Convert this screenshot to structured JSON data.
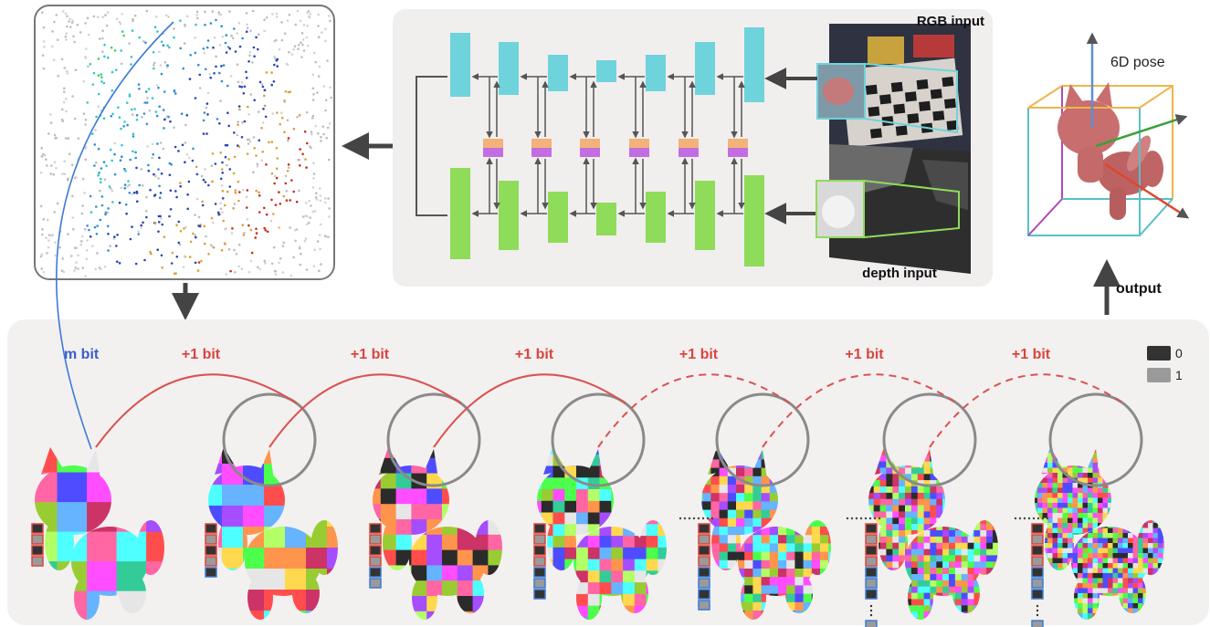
{
  "labels": {
    "rgb_input": "RGB input",
    "depth_input": "depth input",
    "pose": "6D pose",
    "output": "output",
    "m_bit": "m bit",
    "plus_one_bit": "+1 bit"
  },
  "legend": [
    {
      "value": "0",
      "color": "#333333"
    },
    {
      "value": "1",
      "color": "#9a9a9a"
    }
  ],
  "colors": {
    "encoder_blue": "#6fd3dc",
    "decoder_green": "#8fdc5a",
    "fusion_orange": "#f2b27a",
    "fusion_purple": "#c26ee0",
    "arc_red": "#d9534f",
    "arc_blue": "#3a7bd5",
    "panel_gray": "#f3f0f0",
    "arrow_dark": "#444444",
    "m_bit_text": "#3a5fc8",
    "plus_bit_text": "#d9453d",
    "cat_pink": "#c86e6e"
  },
  "icons": [
    "rgb-photo",
    "depth-photo",
    "point-cloud",
    "cat-figure",
    "pose-box"
  ]
}
